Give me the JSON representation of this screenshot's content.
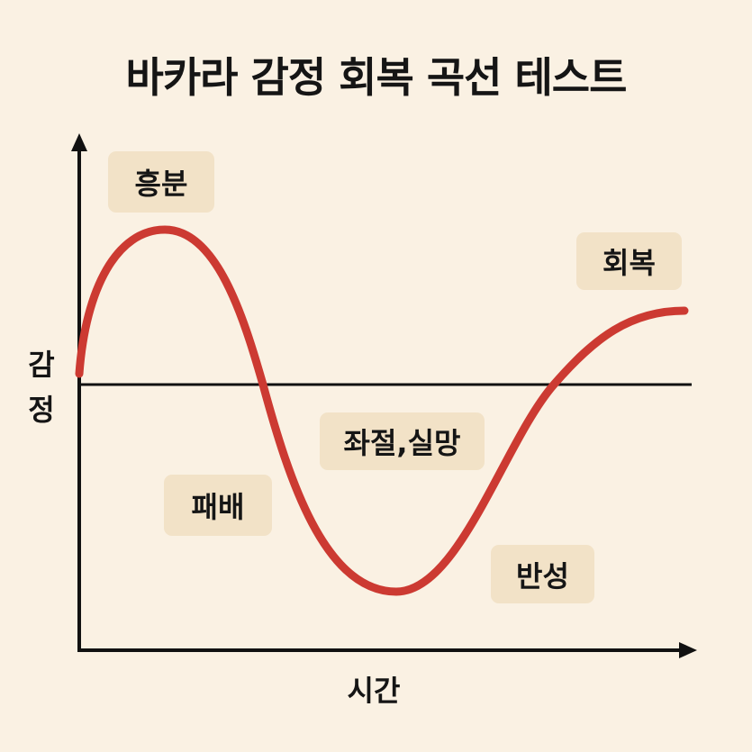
{
  "title": "바카라 감정 회복 곡선 테스트",
  "y_axis_label": "감정",
  "x_axis_label": "시간",
  "phases": [
    {
      "label": "흥분"
    },
    {
      "label": "회복"
    },
    {
      "label": "좌절,실망"
    },
    {
      "label": "패배"
    },
    {
      "label": "반성"
    }
  ]
}
